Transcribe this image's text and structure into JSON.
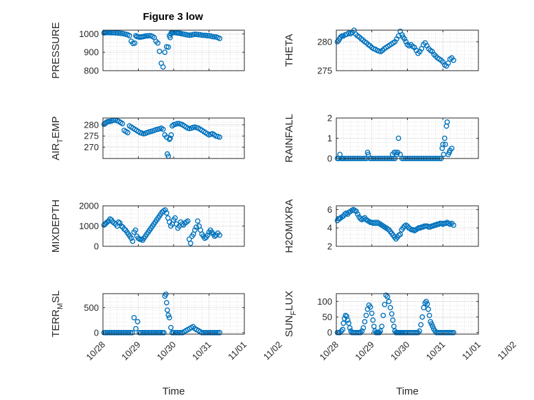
{
  "figure_title": "Figure 3 low",
  "colors": {
    "marker": "#0072BD",
    "axis": "#262626",
    "grid": "#e2e2e2",
    "minor_grid": "#cfcfcf"
  },
  "x_ticks": [
    "10/28",
    "10/29",
    "10/30",
    "10/31",
    "11/01",
    "11/02"
  ],
  "x_label": "Time",
  "chart_data": [
    {
      "type": "scatter",
      "marker": "circle",
      "grid": true,
      "ylabel": "PRESSURE",
      "ylim": [
        800,
        1020
      ],
      "yticks": [
        {
          "v": 800,
          "t": "800"
        },
        {
          "v": 900,
          "t": "900"
        },
        {
          "v": 1000,
          "t": "1000"
        }
      ],
      "x": [
        0.03,
        0.06,
        0.09,
        0.12,
        0.16,
        0.2,
        0.25,
        0.3,
        0.35,
        0.4,
        0.45,
        0.5,
        0.55,
        0.6,
        0.65,
        0.7,
        0.75,
        0.8,
        0.85,
        0.9,
        0.93,
        0.96,
        1.0,
        1.04,
        1.08,
        1.12,
        1.16,
        1.2,
        1.25,
        1.3,
        1.35,
        1.4,
        1.45,
        1.5,
        1.55,
        1.6,
        1.65,
        1.7,
        1.75,
        1.8,
        1.85,
        1.88,
        1.9,
        1.92,
        1.94,
        1.97,
        2.0,
        2.04,
        2.08,
        2.1,
        2.13,
        2.16,
        2.2,
        2.25,
        2.3,
        2.35,
        2.4,
        2.45,
        2.5,
        2.55,
        2.6,
        2.65,
        2.7,
        2.75,
        2.8,
        2.85,
        2.9,
        2.95,
        3.0,
        3.05,
        3.1,
        3.15,
        3.2,
        3.25,
        3.3
      ],
      "y": [
        1005,
        1006,
        1007,
        1007,
        1007,
        1006,
        1006,
        1006,
        1005,
        1005,
        1004,
        1003,
        1002,
        1000,
        998,
        995,
        990,
        960,
        948,
        950,
        990,
        985,
        984,
        982,
        983,
        984,
        986,
        988,
        989,
        990,
        990,
        986,
        980,
        960,
        950,
        905,
        840,
        820,
        900,
        930,
        928,
        990,
        980,
        1000,
        1008,
        1008,
        1007,
        1007,
        1006,
        1005,
        1004,
        1004,
        1002,
        1000,
        998,
        996,
        994,
        993,
        994,
        996,
        998,
        997,
        996,
        995,
        993,
        992,
        992,
        990,
        990,
        988,
        985,
        984,
        983,
        980,
        975
      ]
    },
    {
      "type": "scatter",
      "marker": "circle",
      "grid": true,
      "ylabel": "THETA",
      "ylim": [
        275,
        282
      ],
      "yticks": [
        {
          "v": 275,
          "t": "275"
        },
        {
          "v": 280,
          "t": "280"
        }
      ],
      "x": [
        0.03,
        0.06,
        0.09,
        0.12,
        0.16,
        0.2,
        0.25,
        0.3,
        0.35,
        0.4,
        0.45,
        0.5,
        0.55,
        0.6,
        0.65,
        0.7,
        0.75,
        0.8,
        0.85,
        0.9,
        0.95,
        1.0,
        1.05,
        1.1,
        1.15,
        1.2,
        1.25,
        1.3,
        1.35,
        1.4,
        1.45,
        1.5,
        1.55,
        1.6,
        1.65,
        1.7,
        1.75,
        1.8,
        1.85,
        1.88,
        1.92,
        1.96,
        2.0,
        2.05,
        2.1,
        2.15,
        2.2,
        2.25,
        2.3,
        2.35,
        2.4,
        2.45,
        2.5,
        2.55,
        2.6,
        2.65,
        2.7,
        2.75,
        2.8,
        2.85,
        2.9,
        2.95,
        3.0,
        3.05,
        3.1,
        3.15,
        3.2,
        3.25,
        3.3
      ],
      "y": [
        280.0,
        280.2,
        280.5,
        280.8,
        281.0,
        281.0,
        281.2,
        281.3,
        281.5,
        281.4,
        281.6,
        282.0,
        281.3,
        281.0,
        280.8,
        280.5,
        280.3,
        280.0,
        279.8,
        279.5,
        279.3,
        279.0,
        278.8,
        278.7,
        278.5,
        278.4,
        278.3,
        278.5,
        278.8,
        279.0,
        279.2,
        279.4,
        279.6,
        279.8,
        280.0,
        280.5,
        281.0,
        281.8,
        281.2,
        280.8,
        280.5,
        280.0,
        279.5,
        279.3,
        279.5,
        279.2,
        279.0,
        278.5,
        278.0,
        278.3,
        278.8,
        279.5,
        279.8,
        279.3,
        278.8,
        278.5,
        278.3,
        277.8,
        277.5,
        277.2,
        277.0,
        276.8,
        276.5,
        276.0,
        275.8,
        276.3,
        277.0,
        277.2,
        276.8
      ]
    },
    {
      "type": "scatter",
      "marker": "circle",
      "grid": true,
      "ylabel": "AIR_TEMP",
      "ylim": [
        265,
        283
      ],
      "yticks": [
        {
          "v": 270,
          "t": "270"
        },
        {
          "v": 275,
          "t": "275"
        },
        {
          "v": 280,
          "t": "280"
        }
      ],
      "x": [
        0.03,
        0.06,
        0.09,
        0.12,
        0.16,
        0.2,
        0.25,
        0.3,
        0.35,
        0.4,
        0.45,
        0.5,
        0.55,
        0.6,
        0.65,
        0.7,
        0.75,
        0.8,
        0.85,
        0.9,
        0.95,
        1.0,
        1.05,
        1.1,
        1.15,
        1.2,
        1.25,
        1.3,
        1.35,
        1.4,
        1.45,
        1.5,
        1.55,
        1.6,
        1.65,
        1.7,
        1.75,
        1.8,
        1.82,
        1.85,
        1.88,
        1.9,
        1.93,
        1.96,
        2.0,
        2.05,
        2.1,
        2.15,
        2.2,
        2.25,
        2.3,
        2.35,
        2.4,
        2.45,
        2.5,
        2.55,
        2.6,
        2.65,
        2.7,
        2.75,
        2.8,
        2.85,
        2.9,
        2.95,
        3.0,
        3.05,
        3.1,
        3.15,
        3.2,
        3.25,
        3.3
      ],
      "y": [
        280.2,
        280.5,
        281.0,
        281.3,
        281.5,
        281.5,
        281.7,
        282.0,
        282.0,
        281.8,
        281.5,
        281.0,
        280.5,
        277.5,
        277.0,
        276.5,
        279.5,
        279.0,
        278.5,
        278.0,
        277.5,
        277.0,
        276.5,
        276.3,
        276.0,
        276.2,
        276.5,
        276.8,
        277.0,
        277.2,
        277.5,
        277.8,
        278.0,
        278.2,
        278.5,
        278.0,
        275.5,
        274.5,
        267.0,
        266.0,
        273.5,
        274.0,
        275.5,
        279.5,
        280.0,
        280.2,
        280.5,
        280.5,
        280.3,
        280.0,
        279.5,
        279.0,
        278.5,
        278.3,
        278.5,
        278.8,
        279.0,
        278.7,
        278.5,
        278.0,
        277.5,
        277.0,
        276.5,
        276.0,
        275.5,
        275.8,
        276.0,
        275.5,
        275.0,
        274.8,
        274.5
      ]
    },
    {
      "type": "scatter",
      "marker": "circle",
      "grid": true,
      "ylabel": "RAINFALL",
      "ylim": [
        0,
        2
      ],
      "yticks": [
        {
          "v": 0,
          "t": "0"
        },
        {
          "v": 1,
          "t": "1"
        },
        {
          "v": 2,
          "t": "2"
        }
      ],
      "x": [
        0.03,
        0.07,
        0.1,
        0.13,
        0.17,
        0.2,
        0.25,
        0.3,
        0.35,
        0.4,
        0.45,
        0.5,
        0.55,
        0.6,
        0.65,
        0.7,
        0.75,
        0.8,
        0.85,
        0.88,
        0.9,
        0.95,
        1.0,
        1.05,
        1.1,
        1.15,
        1.2,
        1.25,
        1.3,
        1.35,
        1.4,
        1.45,
        1.5,
        1.55,
        1.58,
        1.6,
        1.63,
        1.65,
        1.68,
        1.7,
        1.73,
        1.75,
        1.8,
        1.85,
        1.9,
        1.95,
        2.0,
        2.05,
        2.1,
        2.15,
        2.2,
        2.25,
        2.3,
        2.35,
        2.4,
        2.45,
        2.5,
        2.55,
        2.6,
        2.65,
        2.7,
        2.75,
        2.8,
        2.85,
        2.9,
        2.95,
        2.98,
        3.0,
        3.02,
        3.05,
        3.07,
        3.1,
        3.12,
        3.15,
        3.18,
        3.2,
        3.25
      ],
      "y": [
        0,
        0,
        0.2,
        0,
        0,
        0,
        0,
        0,
        0,
        0,
        0,
        0,
        0,
        0,
        0,
        0,
        0,
        0,
        0,
        0.3,
        0.2,
        0,
        0,
        0,
        0,
        0,
        0,
        0,
        0,
        0,
        0,
        0,
        0,
        0,
        0.2,
        0,
        0.3,
        0,
        0.3,
        0.2,
        0.3,
        1.0,
        0.2,
        0,
        0,
        0,
        0,
        0,
        0,
        0,
        0,
        0,
        0,
        0,
        0,
        0,
        0,
        0,
        0,
        0,
        0,
        0,
        0,
        0,
        0,
        0,
        0.5,
        0.7,
        0.2,
        1.0,
        0.7,
        1.6,
        1.8,
        0.2,
        0.3,
        0.4,
        0.5
      ]
    },
    {
      "type": "scatter",
      "marker": "circle",
      "grid": true,
      "ylabel": "MIXDEPTH",
      "ylim": [
        0,
        2000
      ],
      "yticks": [
        {
          "v": 0,
          "t": "0"
        },
        {
          "v": 1000,
          "t": "1000"
        },
        {
          "v": 2000,
          "t": "2000"
        }
      ],
      "x": [
        0.03,
        0.06,
        0.09,
        0.12,
        0.16,
        0.2,
        0.24,
        0.28,
        0.32,
        0.36,
        0.4,
        0.44,
        0.48,
        0.52,
        0.56,
        0.6,
        0.64,
        0.68,
        0.72,
        0.76,
        0.8,
        0.84,
        0.88,
        0.92,
        0.96,
        1.0,
        1.04,
        1.08,
        1.12,
        1.16,
        1.2,
        1.24,
        1.28,
        1.32,
        1.36,
        1.4,
        1.44,
        1.48,
        1.52,
        1.56,
        1.6,
        1.64,
        1.68,
        1.72,
        1.76,
        1.8,
        1.84,
        1.88,
        1.92,
        1.96,
        2.0,
        2.04,
        2.08,
        2.12,
        2.16,
        2.2,
        2.24,
        2.28,
        2.32,
        2.36,
        2.4,
        2.44,
        2.48,
        2.52,
        2.56,
        2.6,
        2.64,
        2.68,
        2.72,
        2.76,
        2.8,
        2.84,
        2.88,
        2.92,
        2.96,
        3.0,
        3.04,
        3.08,
        3.12,
        3.16,
        3.2,
        3.25,
        3.3
      ],
      "y": [
        1050,
        1100,
        1150,
        1200,
        1250,
        1350,
        1300,
        1200,
        1150,
        1100,
        1000,
        1200,
        1150,
        1000,
        950,
        850,
        800,
        700,
        600,
        500,
        400,
        250,
        700,
        800,
        500,
        400,
        350,
        350,
        300,
        400,
        500,
        600,
        700,
        800,
        900,
        1000,
        1100,
        1200,
        1300,
        1400,
        1500,
        1600,
        1700,
        1750,
        1800,
        1650,
        1400,
        1200,
        1000,
        1100,
        1300,
        1400,
        1100,
        900,
        1000,
        1200,
        1100,
        1050,
        1150,
        1200,
        1250,
        350,
        150,
        500,
        600,
        800,
        950,
        1250,
        1000,
        800,
        600,
        500,
        400,
        450,
        550,
        700,
        800,
        700,
        600,
        500,
        550,
        650,
        550
      ]
    },
    {
      "type": "scatter",
      "marker": "circle",
      "grid": true,
      "ylabel": "H2OMIXRA",
      "ylim": [
        2,
        6.4
      ],
      "yticks": [
        {
          "v": 2,
          "t": "2"
        },
        {
          "v": 4,
          "t": "4"
        },
        {
          "v": 6,
          "t": "6"
        }
      ],
      "x": [
        0.03,
        0.06,
        0.09,
        0.12,
        0.16,
        0.2,
        0.24,
        0.28,
        0.32,
        0.36,
        0.4,
        0.44,
        0.48,
        0.52,
        0.56,
        0.6,
        0.64,
        0.68,
        0.72,
        0.76,
        0.8,
        0.84,
        0.88,
        0.92,
        0.96,
        1.0,
        1.04,
        1.08,
        1.12,
        1.16,
        1.2,
        1.24,
        1.28,
        1.32,
        1.36,
        1.4,
        1.44,
        1.48,
        1.52,
        1.56,
        1.6,
        1.64,
        1.68,
        1.72,
        1.76,
        1.8,
        1.84,
        1.88,
        1.92,
        1.96,
        2.0,
        2.04,
        2.08,
        2.12,
        2.16,
        2.2,
        2.24,
        2.28,
        2.32,
        2.36,
        2.4,
        2.44,
        2.48,
        2.52,
        2.56,
        2.6,
        2.64,
        2.68,
        2.72,
        2.76,
        2.8,
        2.84,
        2.88,
        2.92,
        2.96,
        3.0,
        3.04,
        3.08,
        3.12,
        3.16,
        3.2,
        3.25,
        3.3
      ],
      "y": [
        4.8,
        5.0,
        5.0,
        5.1,
        5.2,
        5.3,
        5.5,
        5.6,
        5.5,
        5.7,
        5.8,
        5.9,
        6.0,
        5.9,
        5.8,
        5.5,
        5.2,
        5.0,
        4.9,
        5.0,
        5.1,
        4.9,
        4.8,
        4.7,
        4.6,
        4.6,
        4.5,
        4.6,
        4.5,
        4.6,
        4.5,
        4.4,
        4.3,
        4.2,
        4.1,
        4.0,
        3.9,
        3.8,
        3.6,
        3.4,
        3.2,
        3.0,
        2.8,
        3.0,
        3.2,
        3.3,
        3.8,
        4.0,
        4.2,
        4.3,
        4.2,
        4.0,
        3.9,
        3.8,
        3.8,
        3.7,
        3.8,
        3.9,
        4.0,
        4.0,
        4.1,
        4.1,
        4.2,
        4.2,
        4.2,
        4.1,
        4.1,
        4.2,
        4.2,
        4.3,
        4.3,
        4.4,
        4.4,
        4.5,
        4.5,
        4.4,
        4.5,
        4.5,
        4.6,
        4.5,
        4.4,
        4.5,
        4.3
      ]
    },
    {
      "type": "scatter",
      "marker": "circle",
      "grid": true,
      "ylabel": "TERR_MSL",
      "ylim": [
        -30,
        780
      ],
      "yticks": [
        {
          "v": 0,
          "t": "0"
        },
        {
          "v": 500,
          "t": "500"
        }
      ],
      "x": [
        0.03,
        0.08,
        0.13,
        0.18,
        0.23,
        0.28,
        0.33,
        0.38,
        0.43,
        0.48,
        0.53,
        0.58,
        0.63,
        0.68,
        0.73,
        0.78,
        0.83,
        0.88,
        0.93,
        0.98,
        1.03,
        1.08,
        1.13,
        1.18,
        1.23,
        1.28,
        1.33,
        1.38,
        1.43,
        1.48,
        1.53,
        1.58,
        1.63,
        1.68,
        1.72,
        1.75,
        1.78,
        1.8,
        1.82,
        1.85,
        1.88,
        1.92,
        1.96,
        2.0,
        2.05,
        2.1,
        2.15,
        2.2,
        2.25,
        2.3,
        2.35,
        2.4,
        2.45,
        2.5,
        2.55,
        2.6,
        2.65,
        2.7,
        2.75,
        2.8,
        2.85,
        2.9,
        2.95,
        3.0,
        3.05,
        3.1,
        3.15,
        3.2,
        3.25,
        3.3
      ],
      "y": [
        0,
        0,
        0,
        0,
        0,
        0,
        0,
        0,
        0,
        0,
        0,
        0,
        0,
        0,
        0,
        0,
        0,
        300,
        80,
        220,
        0,
        0,
        0,
        0,
        0,
        0,
        0,
        0,
        0,
        0,
        0,
        0,
        0,
        0,
        0,
        730,
        770,
        600,
        450,
        350,
        300,
        100,
        0,
        0,
        0,
        0,
        0,
        0,
        0,
        20,
        40,
        60,
        80,
        100,
        120,
        80,
        60,
        40,
        20,
        0,
        0,
        0,
        0,
        0,
        0,
        0,
        0,
        0,
        0,
        0
      ]
    },
    {
      "type": "scatter",
      "marker": "circle",
      "grid": true,
      "ylabel": "SUN_FLUX",
      "ylim": [
        -5,
        125
      ],
      "yticks": [
        {
          "v": 0,
          "t": "0"
        },
        {
          "v": 50,
          "t": "50"
        },
        {
          "v": 100,
          "t": "100"
        }
      ],
      "x": [
        0.03,
        0.06,
        0.1,
        0.14,
        0.18,
        0.2,
        0.23,
        0.26,
        0.29,
        0.32,
        0.35,
        0.38,
        0.41,
        0.44,
        0.48,
        0.52,
        0.56,
        0.6,
        0.64,
        0.68,
        0.72,
        0.76,
        0.8,
        0.84,
        0.88,
        0.92,
        0.96,
        1.0,
        1.03,
        1.06,
        1.09,
        1.12,
        1.15,
        1.18,
        1.21,
        1.24,
        1.28,
        1.32,
        1.36,
        1.4,
        1.44,
        1.48,
        1.52,
        1.56,
        1.59,
        1.62,
        1.65,
        1.68,
        1.71,
        1.74,
        1.77,
        1.8,
        1.83,
        1.86,
        1.9,
        1.94,
        1.98,
        2.02,
        2.06,
        2.1,
        2.14,
        2.18,
        2.22,
        2.26,
        2.3,
        2.34,
        2.38,
        2.42,
        2.46,
        2.5,
        2.53,
        2.56,
        2.59,
        2.62,
        2.65,
        2.68,
        2.71,
        2.74,
        2.78,
        2.82,
        2.86,
        2.9,
        2.94,
        2.98,
        3.02,
        3.06,
        3.1,
        3.14,
        3.18,
        3.22,
        3.26,
        3.3
      ],
      "y": [
        0,
        0,
        0,
        5,
        10,
        30,
        45,
        55,
        52,
        40,
        30,
        15,
        5,
        0,
        0,
        0,
        0,
        0,
        0,
        0,
        5,
        15,
        35,
        55,
        75,
        88,
        82,
        62,
        40,
        20,
        5,
        0,
        0,
        0,
        0,
        5,
        20,
        55,
        90,
        120,
        115,
        100,
        80,
        60,
        40,
        20,
        5,
        0,
        0,
        0,
        0,
        0,
        0,
        0,
        0,
        0,
        0,
        0,
        0,
        0,
        0,
        0,
        0,
        0,
        0,
        5,
        25,
        50,
        80,
        95,
        100,
        92,
        75,
        55,
        35,
        28,
        20,
        12,
        5,
        0,
        0,
        0,
        0,
        0,
        0,
        0,
        0,
        0,
        0,
        0,
        0,
        0
      ]
    }
  ]
}
